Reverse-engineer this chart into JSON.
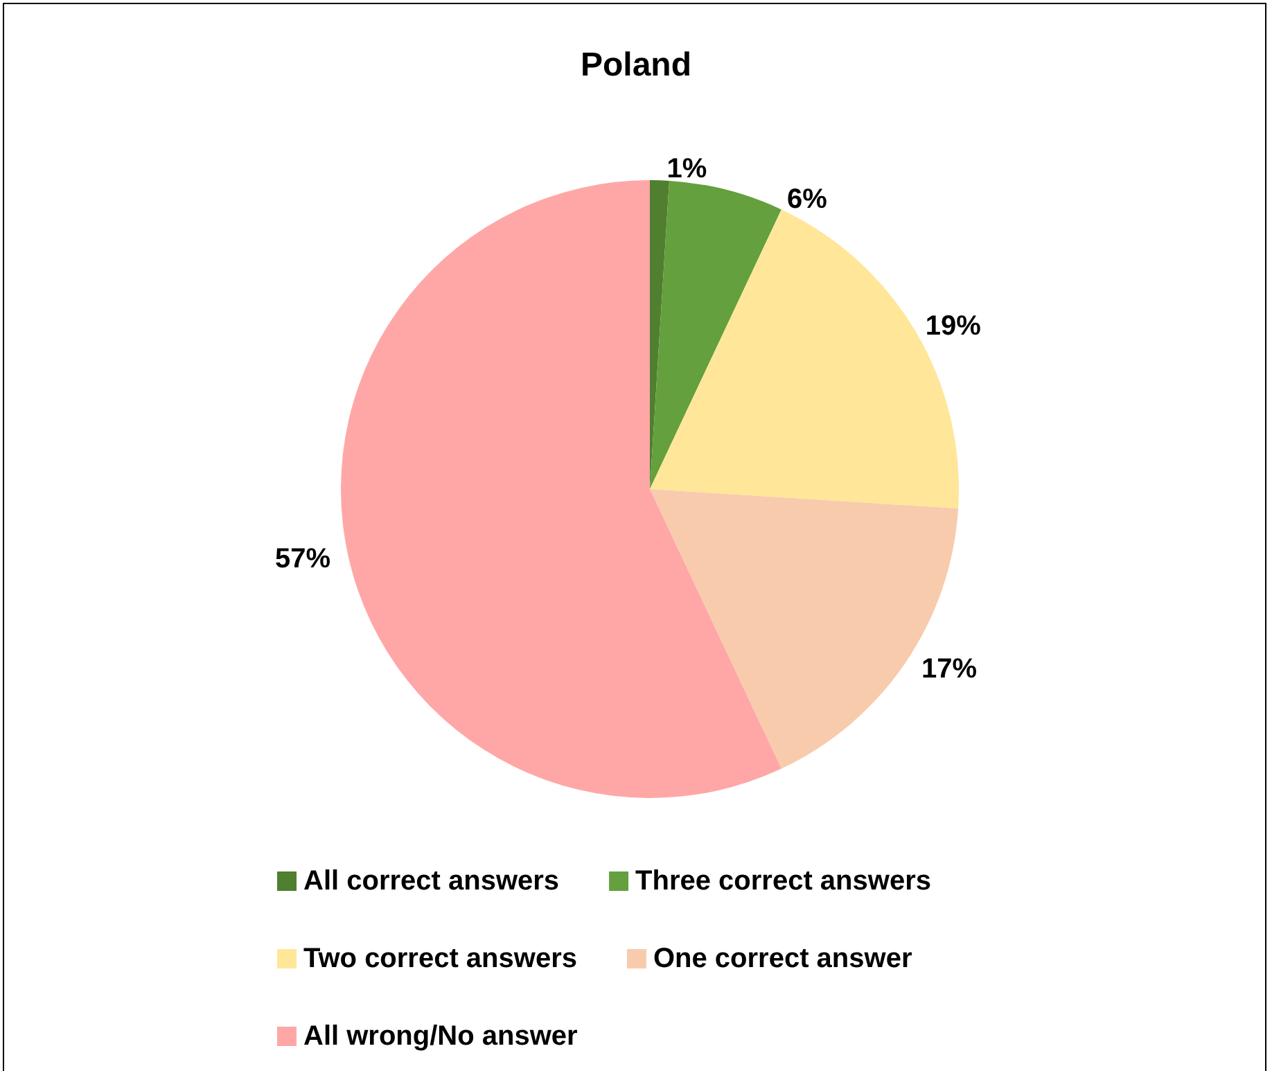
{
  "chart_data": {
    "type": "pie",
    "title": "Poland",
    "categories": [
      "All correct answers",
      "Three correct answers",
      "Two correct answers",
      "One correct answer",
      "All wrong/No answer"
    ],
    "values": [
      1,
      6,
      19,
      17,
      57
    ],
    "colors": [
      "#4f7f2f",
      "#64a03d",
      "#ffe699",
      "#f8cbad",
      "#ffa7a7"
    ],
    "value_labels": [
      "1%",
      "6%",
      "19%",
      "17%",
      "57%"
    ],
    "legend": "bottom"
  }
}
